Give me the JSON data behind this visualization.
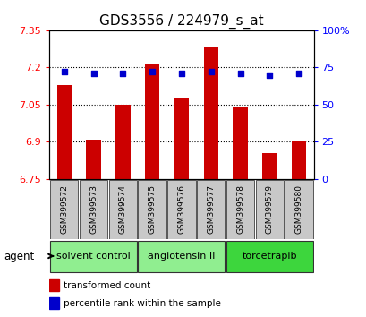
{
  "title": "GDS3556 / 224979_s_at",
  "samples": [
    "GSM399572",
    "GSM399573",
    "GSM399574",
    "GSM399575",
    "GSM399576",
    "GSM399577",
    "GSM399578",
    "GSM399579",
    "GSM399580"
  ],
  "red_values": [
    7.13,
    6.91,
    7.05,
    7.21,
    7.08,
    7.28,
    7.04,
    6.855,
    6.905
  ],
  "blue_pct": [
    72,
    71,
    71,
    72,
    71,
    72,
    71,
    70,
    71
  ],
  "ylim_left": [
    6.75,
    7.35
  ],
  "ylim_right": [
    0,
    100
  ],
  "yticks_left": [
    6.75,
    6.9,
    7.05,
    7.2,
    7.35
  ],
  "yticks_right": [
    0,
    25,
    50,
    75,
    100
  ],
  "ytick_labels_left": [
    "6.75",
    "6.9",
    "7.05",
    "7.2",
    "7.35"
  ],
  "ytick_labels_right": [
    "0",
    "25",
    "50",
    "75",
    "100%"
  ],
  "grid_lines": [
    6.9,
    7.05,
    7.2
  ],
  "groups": [
    {
      "label": "solvent control",
      "indices": [
        0,
        1,
        2
      ],
      "color": "#90EE90"
    },
    {
      "label": "angiotensin II",
      "indices": [
        3,
        4,
        5
      ],
      "color": "#90EE90"
    },
    {
      "label": "torcetrapib",
      "indices": [
        6,
        7,
        8
      ],
      "color": "#3DD63D"
    }
  ],
  "bar_color": "#CC0000",
  "dot_color": "#0000CC",
  "bar_width": 0.5,
  "bar_baseline": 6.75,
  "title_fontsize": 11,
  "tick_fontsize": 8,
  "legend_fontsize": 7.5,
  "group_fontsize": 8,
  "sample_fontsize": 6.5,
  "agent_label": "agent",
  "legend_items": [
    {
      "label": "transformed count",
      "color": "#CC0000"
    },
    {
      "label": "percentile rank within the sample",
      "color": "#0000CC"
    }
  ]
}
